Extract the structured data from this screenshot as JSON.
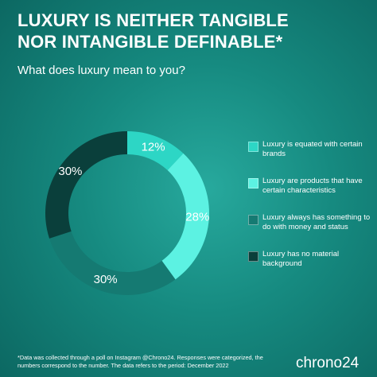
{
  "chart_data": {
    "type": "pie",
    "title": "LUXURY IS NEITHER TANGIBLE NOR INTANGIBLE DEFINABLE*",
    "subtitle": "What does luxury mean to you?",
    "categories": [
      "Luxury is equated with certain brands",
      "Luxury are products that have certain characteristics",
      "Luxury always has something to do with money and status",
      "Luxury has no material background"
    ],
    "values": [
      12,
      28,
      30,
      30
    ],
    "value_labels": [
      "12%",
      "28%",
      "30%",
      "30%"
    ],
    "colors": [
      "#2dd6c5",
      "#5cf2e2",
      "#157a72",
      "#0a3f3b"
    ],
    "legend": "right",
    "footnote": "*Data was collected through a poll on Instagram @Chrono24. Responses were categorized, the numbers correspond to the number. The data refers to the period: December 2022",
    "brand": "chrono24"
  }
}
